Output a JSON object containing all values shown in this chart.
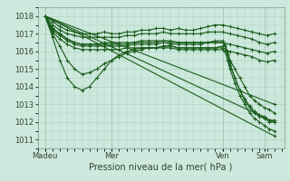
{
  "xlabel": "Pression niveau de la mer( hPa )",
  "background_color": "#cde8dc",
  "plot_bg_color": "#cde8dc",
  "grid_color": "#b0d4c4",
  "line_color": "#1a5c1a",
  "marker": "+",
  "markersize": 3,
  "linewidth": 0.8,
  "ylim": [
    1010.5,
    1018.5
  ],
  "xlim": [
    0,
    100
  ],
  "yticks": [
    1011,
    1012,
    1013,
    1014,
    1015,
    1016,
    1017,
    1018
  ],
  "xtick_labels": [
    "Madeu",
    "Mer",
    "Ven",
    "Sam"
  ],
  "xtick_positions": [
    3,
    30,
    75,
    92
  ],
  "vlines": [
    3,
    30,
    75,
    92
  ],
  "fontsize_tick": 6,
  "fontsize_xlabel": 7,
  "lines": [
    {
      "x": [
        3,
        6,
        9,
        12,
        15,
        18,
        21,
        24,
        27,
        30,
        33,
        36,
        39,
        42,
        45,
        48,
        51,
        54,
        57,
        60,
        63,
        66,
        69,
        72,
        75,
        78,
        81,
        84,
        87,
        90,
        93,
        96
      ],
      "y": [
        1018,
        1017.7,
        1017.4,
        1017.2,
        1017.1,
        1017.0,
        1017.0,
        1017.0,
        1017.1,
        1017.0,
        1017.0,
        1017.1,
        1017.1,
        1017.2,
        1017.2,
        1017.3,
        1017.3,
        1017.2,
        1017.3,
        1017.2,
        1017.2,
        1017.3,
        1017.4,
        1017.5,
        1017.5,
        1017.4,
        1017.3,
        1017.2,
        1017.1,
        1017.0,
        1016.9,
        1017.0
      ]
    },
    {
      "x": [
        3,
        6,
        9,
        12,
        15,
        18,
        21,
        24,
        27,
        30,
        33,
        36,
        39,
        42,
        45,
        48,
        51,
        54,
        57,
        60,
        63,
        66,
        69,
        72,
        75,
        78,
        81,
        84,
        87,
        90,
        93,
        96
      ],
      "y": [
        1018,
        1017.5,
        1017.2,
        1017.0,
        1016.9,
        1016.8,
        1016.8,
        1016.8,
        1016.8,
        1016.8,
        1016.8,
        1016.9,
        1016.9,
        1017.0,
        1017.0,
        1017.0,
        1017.1,
        1017.0,
        1017.0,
        1017.0,
        1017.0,
        1017.0,
        1017.1,
        1017.1,
        1017.1,
        1017.0,
        1016.9,
        1016.8,
        1016.7,
        1016.5,
        1016.4,
        1016.5
      ]
    },
    {
      "x": [
        3,
        6,
        9,
        12,
        15,
        18,
        21,
        24,
        27,
        30,
        33,
        36,
        39,
        42,
        45,
        48,
        51,
        54,
        57,
        60,
        63,
        66,
        69,
        72,
        75,
        78,
        81,
        84,
        87,
        90,
        93,
        96
      ],
      "y": [
        1018,
        1017.3,
        1017.0,
        1016.7,
        1016.5,
        1016.4,
        1016.4,
        1016.4,
        1016.5,
        1016.5,
        1016.5,
        1016.5,
        1016.5,
        1016.6,
        1016.6,
        1016.6,
        1016.6,
        1016.6,
        1016.5,
        1016.5,
        1016.5,
        1016.5,
        1016.5,
        1016.5,
        1016.5,
        1016.4,
        1016.3,
        1016.2,
        1016.1,
        1016.0,
        1015.9,
        1016.0
      ]
    },
    {
      "x": [
        3,
        6,
        9,
        12,
        15,
        18,
        21,
        24,
        27,
        30,
        33,
        36,
        39,
        42,
        45,
        48,
        51,
        54,
        57,
        60,
        63,
        66,
        69,
        72,
        75,
        78,
        81,
        84,
        87,
        90,
        93,
        96
      ],
      "y": [
        1018,
        1017.1,
        1016.7,
        1016.4,
        1016.2,
        1016.1,
        1016.1,
        1016.1,
        1016.1,
        1016.1,
        1016.1,
        1016.2,
        1016.2,
        1016.2,
        1016.2,
        1016.2,
        1016.2,
        1016.2,
        1016.1,
        1016.1,
        1016.1,
        1016.1,
        1016.1,
        1016.1,
        1016.1,
        1016.0,
        1015.9,
        1015.8,
        1015.7,
        1015.5,
        1015.4,
        1015.5
      ]
    },
    {
      "x": [
        3,
        6,
        9,
        12,
        15,
        18,
        21,
        24,
        27,
        30,
        33,
        36,
        39,
        42,
        45,
        48,
        51,
        54,
        57,
        60,
        63,
        66,
        69,
        72,
        75,
        76,
        77,
        78,
        80,
        82,
        84,
        86,
        88,
        90,
        92,
        94,
        96
      ],
      "y": [
        1018,
        1017.0,
        1016.3,
        1015.5,
        1015.0,
        1014.7,
        1014.8,
        1015.0,
        1015.3,
        1015.5,
        1015.7,
        1015.9,
        1016.0,
        1016.1,
        1016.2,
        1016.2,
        1016.3,
        1016.3,
        1016.2,
        1016.2,
        1016.2,
        1016.2,
        1016.2,
        1016.2,
        1016.3,
        1016.3,
        1016.0,
        1015.5,
        1015.0,
        1014.5,
        1014.0,
        1013.5,
        1013.2,
        1013.0,
        1012.8,
        1012.7,
        1012.5
      ]
    },
    {
      "x": [
        3,
        6,
        9,
        12,
        15,
        18,
        21,
        24,
        27,
        30,
        33,
        36,
        39,
        42,
        45,
        48,
        51,
        54,
        57,
        60,
        63,
        66,
        69,
        72,
        75,
        76,
        77,
        78,
        80,
        82,
        84,
        86,
        88,
        90,
        92,
        94,
        96
      ],
      "y": [
        1018,
        1016.8,
        1015.5,
        1014.5,
        1014.0,
        1013.8,
        1014.0,
        1014.5,
        1015.0,
        1015.5,
        1015.8,
        1016.0,
        1016.1,
        1016.2,
        1016.2,
        1016.2,
        1016.3,
        1016.3,
        1016.2,
        1016.2,
        1016.2,
        1016.2,
        1016.2,
        1016.2,
        1016.2,
        1016.0,
        1015.5,
        1015.0,
        1014.2,
        1013.5,
        1013.0,
        1012.5,
        1012.2,
        1012.0,
        1011.8,
        1011.6,
        1011.5
      ]
    },
    {
      "x": [
        3,
        96
      ],
      "y": [
        1018.0,
        1013.0
      ]
    },
    {
      "x": [
        3,
        96
      ],
      "y": [
        1018.0,
        1012.0
      ]
    },
    {
      "x": [
        3,
        96
      ],
      "y": [
        1018.0,
        1011.2
      ]
    },
    {
      "x": [
        3,
        6,
        9,
        12,
        15,
        18,
        21,
        24,
        27,
        30,
        33,
        36,
        39,
        42,
        45,
        48,
        51,
        54,
        57,
        60,
        63,
        66,
        69,
        72,
        75,
        76,
        77,
        78,
        80,
        82,
        84,
        86,
        88,
        90,
        92,
        94,
        96
      ],
      "y": [
        1018,
        1017.2,
        1016.9,
        1016.6,
        1016.4,
        1016.3,
        1016.3,
        1016.3,
        1016.3,
        1016.3,
        1016.3,
        1016.3,
        1016.4,
        1016.4,
        1016.4,
        1016.4,
        1016.5,
        1016.4,
        1016.4,
        1016.4,
        1016.4,
        1016.4,
        1016.5,
        1016.5,
        1016.5,
        1016.3,
        1015.8,
        1015.2,
        1014.5,
        1013.8,
        1013.2,
        1012.8,
        1012.5,
        1012.3,
        1012.2,
        1012.0,
        1012.0
      ]
    },
    {
      "x": [
        3,
        6,
        9,
        12,
        15,
        18,
        21,
        24,
        27,
        30,
        33,
        36,
        39,
        42,
        45,
        48,
        51,
        54,
        57,
        60,
        63,
        66,
        69,
        72,
        75,
        76,
        77,
        78,
        80,
        82,
        84,
        86,
        88,
        90,
        92,
        94,
        96
      ],
      "y": [
        1018,
        1017.3,
        1017.0,
        1016.7,
        1016.5,
        1016.4,
        1016.4,
        1016.4,
        1016.4,
        1016.4,
        1016.4,
        1016.4,
        1016.5,
        1016.5,
        1016.5,
        1016.5,
        1016.6,
        1016.5,
        1016.5,
        1016.5,
        1016.5,
        1016.5,
        1016.5,
        1016.6,
        1016.6,
        1016.4,
        1015.9,
        1015.3,
        1014.5,
        1013.8,
        1013.3,
        1012.9,
        1012.6,
        1012.4,
        1012.3,
        1012.1,
        1012.1
      ]
    }
  ]
}
